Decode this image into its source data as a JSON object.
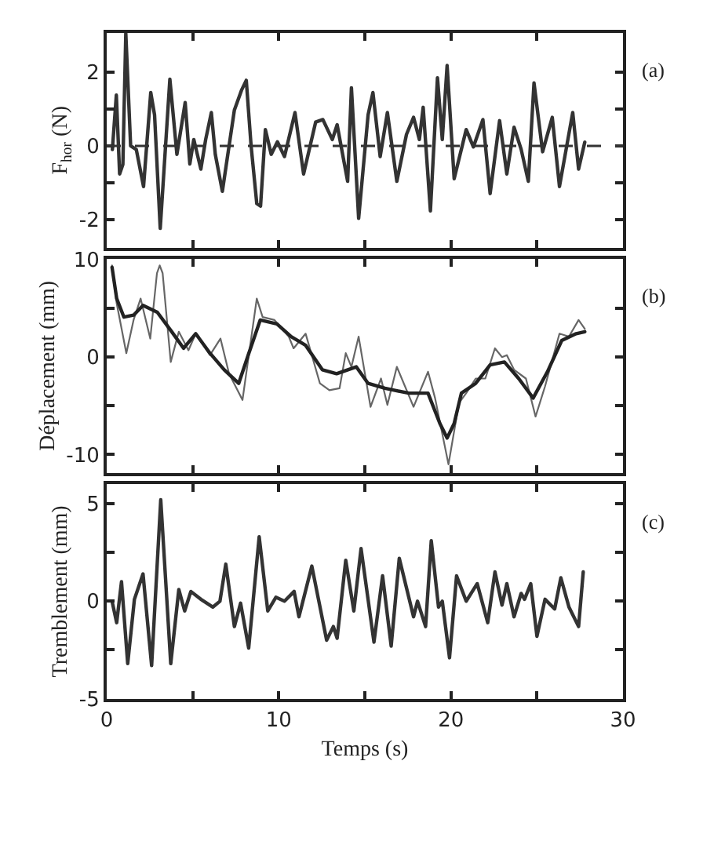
{
  "chart_data": [
    {
      "type": "line",
      "ylabel": "F$_{hor}$ (N)",
      "annotations": [
        "(a)"
      ],
      "tick_labels": "y",
      "xlim": [
        0,
        30
      ],
      "xticks": [
        0,
        {
          "value": 5,
          "label": null
        },
        10,
        {
          "value": 15,
          "label": null
        },
        20,
        {
          "value": 25,
          "label": null
        },
        30
      ],
      "ylim": [
        -2.75,
        3.05
      ],
      "yticks": [
        -2,
        {
          "value": -1,
          "label": null
        },
        0,
        {
          "value": 1,
          "label": null
        },
        2
      ],
      "ref_lines": [
        {
          "axis": "y",
          "value": 0,
          "label": null,
          "color": "#333333",
          "line_style": "dashed"
        }
      ],
      "series": [
        {
          "color": "#333333",
          "x": [
            0.33,
            0.56,
            0.75,
            0.94,
            1.11,
            1.39,
            1.72,
            2.14,
            2.56,
            2.78,
            3.11,
            3.67,
            4.08,
            4.56,
            4.83,
            5.06,
            5.47,
            5.75,
            6.08,
            6.31,
            6.72,
            7.42,
            7.83,
            8.11,
            8.39,
            8.72,
            8.94,
            9.22,
            9.56,
            9.92,
            10.33,
            10.94,
            11.44,
            12.14,
            12.56,
            13.11,
            13.39,
            14.0,
            14.22,
            14.64,
            15.19,
            15.47,
            15.89,
            16.31,
            16.86,
            17.42,
            17.83,
            18.17,
            18.39,
            18.81,
            19.22,
            19.5,
            19.78,
            20.19,
            20.89,
            21.31,
            21.86,
            22.28,
            22.83,
            23.25,
            23.67,
            24.08,
            24.5,
            24.83,
            25.33,
            25.89,
            26.31,
            27.08,
            27.42,
            27.78
          ],
          "values": [
            -0.1,
            1.37,
            -0.76,
            -0.5,
            3.04,
            0,
            -0.1,
            -1.1,
            1.44,
            0.84,
            -2.23,
            1.8,
            -0.23,
            1.17,
            -0.49,
            0.17,
            -0.63,
            0.17,
            0.9,
            -0.23,
            -1.23,
            0.97,
            1.5,
            1.77,
            0,
            -1.56,
            -1.63,
            0.44,
            -0.23,
            0.11,
            -0.29,
            0.9,
            -0.76,
            0.64,
            0.71,
            0.17,
            0.57,
            -0.96,
            1.57,
            -1.96,
            0.84,
            1.44,
            -0.29,
            0.9,
            -0.96,
            0.31,
            0.77,
            0.17,
            1.04,
            -1.76,
            1.84,
            0.17,
            2.17,
            -0.89,
            0.44,
            -0.03,
            0.71,
            -1.29,
            0.68,
            -0.76,
            0.5,
            -0.09,
            -0.96,
            1.7,
            -0.16,
            0.77,
            -1.1,
            0.9,
            -0.63,
            0.1
          ]
        }
      ]
    },
    {
      "type": "line",
      "ylabel": "Déplacement (mm)",
      "annotations": [
        "(b)"
      ],
      "tick_labels": "y",
      "xlim": [
        0,
        30
      ],
      "xticks": [
        0,
        {
          "value": 5,
          "label": null
        },
        10,
        {
          "value": 15,
          "label": null
        },
        20,
        {
          "value": 25,
          "label": null
        },
        30
      ],
      "ylim": [
        -11.9,
        10.1
      ],
      "yticks": [
        -10,
        {
          "value": -5,
          "label": null
        },
        0,
        {
          "value": 5,
          "label": null
        },
        10
      ],
      "series": [
        {
          "color": "#666666",
          "x": [
            0.31,
            0.58,
            1.14,
            1.56,
            1.97,
            2.53,
            2.92,
            3.08,
            3.25,
            3.72,
            4.19,
            4.75,
            5.17,
            6.0,
            6.61,
            7.11,
            7.89,
            8.72,
            9.06,
            9.75,
            10.58,
            10.86,
            11.56,
            12.39,
            12.94,
            13.53,
            13.89,
            14.22,
            14.64,
            15.33,
            15.94,
            16.31,
            16.86,
            17.83,
            18.67,
            19.08,
            19.86,
            20.47,
            20.89,
            21.44,
            22.0,
            22.56,
            22.97,
            23.25,
            23.67,
            24.36,
            24.92,
            25.47,
            26.31,
            26.86,
            27.42,
            27.78
          ],
          "values": [
            9.4,
            5.5,
            0.4,
            3.8,
            6.0,
            1.9,
            8.6,
            9.4,
            8.6,
            -0.5,
            2.6,
            0.7,
            2.4,
            0.2,
            1.9,
            -1.7,
            -4.4,
            6.0,
            4.1,
            3.8,
            2.1,
            0.9,
            2.4,
            -2.7,
            -3.4,
            -3.2,
            0.4,
            -1.0,
            2.1,
            -5.1,
            -2.2,
            -4.9,
            -1.0,
            -5.1,
            -1.5,
            -4.2,
            -11.0,
            -4.7,
            -3.7,
            -2.2,
            -2.2,
            0.9,
            0,
            0.2,
            -1.3,
            -2.2,
            -6.1,
            -3.0,
            2.4,
            2.1,
            3.8,
            2.9
          ]
        },
        {
          "color": "#222222",
          "x": [
            0.31,
            0.58,
            1.0,
            1.56,
            2.11,
            2.94,
            3.78,
            4.47,
            5.17,
            6.0,
            6.83,
            7.67,
            8.22,
            8.92,
            9.89,
            10.72,
            11.56,
            12.53,
            13.36,
            14.5,
            15.19,
            16.17,
            17.56,
            18.67,
            19.36,
            19.78,
            20.19,
            20.61,
            21.44,
            22.28,
            23.11,
            23.94,
            24.78,
            25.61,
            26.44,
            27.28,
            27.78
          ],
          "values": [
            9.2,
            6.0,
            4.1,
            4.3,
            5.3,
            4.6,
            2.6,
            0.9,
            2.4,
            0.4,
            -1.3,
            -2.7,
            0.2,
            3.8,
            3.4,
            2.1,
            1.2,
            -1.3,
            -1.7,
            -1.0,
            -2.7,
            -3.2,
            -3.7,
            -3.7,
            -6.8,
            -8.3,
            -6.8,
            -3.7,
            -2.7,
            -0.8,
            -0.5,
            -2.2,
            -4.2,
            -1.5,
            1.7,
            2.4,
            2.6
          ]
        }
      ]
    },
    {
      "type": "line",
      "ylabel": "Tremblement (mm)",
      "xlabel": "Temps (s)",
      "annotations": [
        "(c)"
      ],
      "xlim": [
        0,
        30
      ],
      "xticks": [
        0,
        {
          "value": 5,
          "label": null
        },
        10,
        {
          "value": 15,
          "label": null
        },
        20,
        {
          "value": 25,
          "label": null
        },
        30
      ],
      "ylim": [
        -5.0,
        6.0
      ],
      "yticks": [
        -5,
        {
          "value": -2.5,
          "label": null
        },
        0,
        {
          "value": 2.5,
          "label": null
        },
        5
      ],
      "series": [
        {
          "color": "#333333",
          "x": [
            0.31,
            0.58,
            0.86,
            1.22,
            1.61,
            2.11,
            2.61,
            3.14,
            3.72,
            4.19,
            4.53,
            4.89,
            5.47,
            6.17,
            6.58,
            6.92,
            7.42,
            7.78,
            8.25,
            8.86,
            9.36,
            9.83,
            10.33,
            10.89,
            11.17,
            11.92,
            12.78,
            13.17,
            13.39,
            13.89,
            14.36,
            14.78,
            15.53,
            16.03,
            16.53,
            17.0,
            17.83,
            18.06,
            18.53,
            18.86,
            19.28,
            19.5,
            19.92,
            20.33,
            20.89,
            21.53,
            22.14,
            22.56,
            22.97,
            23.25,
            23.67,
            24.08,
            24.28,
            24.64,
            25.0,
            25.47,
            26.03,
            26.39,
            26.86,
            27.42,
            27.69
          ],
          "values": [
            0,
            -1.1,
            1.0,
            -3.2,
            0.1,
            1.4,
            -3.3,
            5.2,
            -3.2,
            0.6,
            -0.5,
            0.5,
            0.1,
            -0.3,
            0,
            1.9,
            -1.3,
            -0.1,
            -2.4,
            3.3,
            -0.5,
            0.2,
            0,
            0.5,
            -0.8,
            1.8,
            -2.0,
            -1.3,
            -1.9,
            2.1,
            -0.5,
            2.7,
            -2.1,
            1.3,
            -2.3,
            2.2,
            -0.8,
            0,
            -1.3,
            3.1,
            -0.3,
            0,
            -2.9,
            1.3,
            0,
            0.9,
            -1.1,
            1.5,
            -0.2,
            0.9,
            -0.8,
            0.4,
            0.1,
            0.9,
            -1.8,
            0.1,
            -0.4,
            1.2,
            -0.3,
            -1.3,
            1.5
          ]
        }
      ]
    }
  ]
}
